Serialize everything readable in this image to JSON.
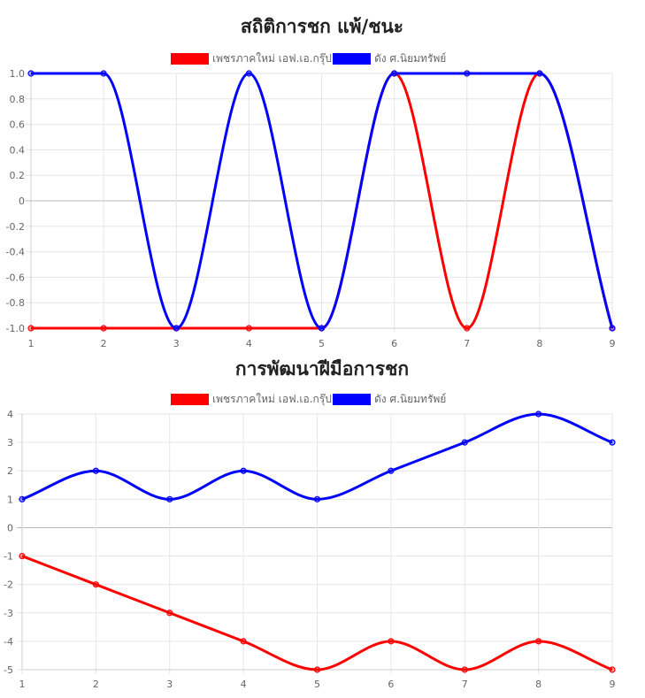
{
  "chart_data": [
    {
      "type": "line",
      "title": "สถิติการชก แพ้/ชนะ",
      "x": [
        1,
        2,
        3,
        4,
        5,
        6,
        7,
        8,
        9
      ],
      "ylim": [
        -1.0,
        1.0
      ],
      "yticks": [
        "1.0",
        "0.8",
        "0.6",
        "0.4",
        "0.2",
        "0",
        "-0.2",
        "-0.4",
        "-0.6",
        "-0.8",
        "-1.0"
      ],
      "ytick_values": [
        1.0,
        0.8,
        0.6,
        0.4,
        0.2,
        0,
        -0.2,
        -0.4,
        -0.6,
        -0.8,
        -1.0
      ],
      "grid": true,
      "legend_position": "top",
      "series": [
        {
          "name": "เพชรภาคใหม่ เอฟ.เอ.กรุ๊ป",
          "color": "#ff0000",
          "values": [
            -1,
            -1,
            -1,
            -1,
            -1,
            1,
            -1,
            1,
            -1
          ]
        },
        {
          "name": "ดัง ศ.นิยมทรัพย์",
          "color": "#0000ff",
          "values": [
            1,
            1,
            -1,
            1,
            -1,
            1,
            1,
            1,
            -1
          ]
        }
      ]
    },
    {
      "type": "line",
      "title": "การพัฒนาฝีมือการชก",
      "x": [
        1,
        2,
        3,
        4,
        5,
        6,
        7,
        8,
        9
      ],
      "ylim": [
        -5,
        4
      ],
      "yticks": [
        "4",
        "3",
        "2",
        "1",
        "0",
        "-1",
        "-2",
        "-3",
        "-4",
        "-5"
      ],
      "ytick_values": [
        4,
        3,
        2,
        1,
        0,
        -1,
        -2,
        -3,
        -4,
        -5
      ],
      "grid": true,
      "legend_position": "top",
      "series": [
        {
          "name": "เพชรภาคใหม่ เอฟ.เอ.กรุ๊ป",
          "color": "#ff0000",
          "values": [
            -1,
            -2,
            -3,
            -4,
            -5,
            -4,
            -5,
            -4,
            -5
          ]
        },
        {
          "name": "ดัง ศ.นิยมทรัพย์",
          "color": "#0000ff",
          "values": [
            1,
            2,
            1,
            2,
            1,
            2,
            3,
            4,
            3
          ]
        }
      ]
    }
  ]
}
